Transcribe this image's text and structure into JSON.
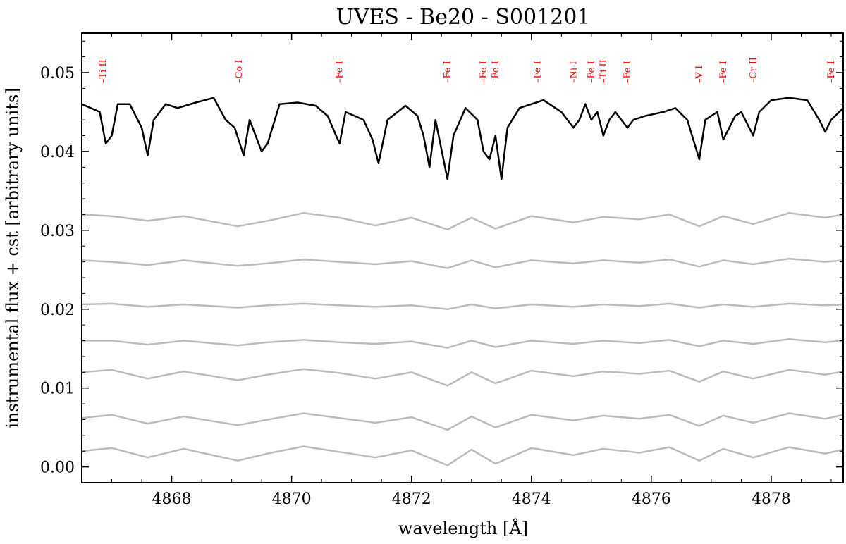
{
  "chart_data": {
    "type": "line",
    "title": "UVES - Be20 - S001201",
    "xlabel": "wavelength [Å]",
    "ylabel": "instrumental flux + cst [arbitrary units]",
    "xlim": [
      4866.5,
      4879.2
    ],
    "ylim": [
      -0.002,
      0.055
    ],
    "xticks": [
      4868,
      4870,
      4872,
      4874,
      4876,
      4878
    ],
    "yticks": [
      0.0,
      0.01,
      0.02,
      0.03,
      0.04,
      0.05
    ],
    "xtick_labels": [
      "4868",
      "4870",
      "4872",
      "4874",
      "4876",
      "4878"
    ],
    "ytick_labels": [
      "0.00",
      "0.01",
      "0.02",
      "0.03",
      "0.04",
      "0.05"
    ],
    "grid": false,
    "colors": {
      "main": "#000000",
      "residual": "#bbbbbb",
      "line_labels": "#ff0000"
    },
    "line_labels": [
      {
        "wavelength": 4866.85,
        "text": "Ti II"
      },
      {
        "wavelength": 4869.12,
        "text": "Co I"
      },
      {
        "wavelength": 4870.8,
        "text": "Fe I"
      },
      {
        "wavelength": 4872.6,
        "text": "Fe I"
      },
      {
        "wavelength": 4873.2,
        "text": "Fe I"
      },
      {
        "wavelength": 4873.4,
        "text": "Fe I"
      },
      {
        "wavelength": 4874.1,
        "text": "Fe I"
      },
      {
        "wavelength": 4874.7,
        "text": "Ni I"
      },
      {
        "wavelength": 4875.0,
        "text": "Fe I"
      },
      {
        "wavelength": 4875.2,
        "text": "Ti II"
      },
      {
        "wavelength": 4875.6,
        "text": "Fe I"
      },
      {
        "wavelength": 4876.8,
        "text": "V I"
      },
      {
        "wavelength": 4877.2,
        "text": "Fe I"
      },
      {
        "wavelength": 4877.7,
        "text": "Cr II"
      },
      {
        "wavelength": 4879.0,
        "text": "Fe I"
      }
    ],
    "series": [
      {
        "role": "main",
        "x": [
          4866.5,
          4866.8,
          4866.9,
          4867.0,
          4867.1,
          4867.3,
          4867.5,
          4867.6,
          4867.7,
          4867.9,
          4868.1,
          4868.4,
          4868.7,
          4868.9,
          4869.05,
          4869.2,
          4869.3,
          4869.5,
          4869.6,
          4869.8,
          4870.1,
          4870.4,
          4870.6,
          4870.8,
          4870.9,
          4871.2,
          4871.35,
          4871.45,
          4871.6,
          4871.9,
          4872.1,
          4872.2,
          4872.3,
          4872.4,
          4872.6,
          4872.7,
          4872.9,
          4873.1,
          4873.2,
          4873.3,
          4873.4,
          4873.5,
          4873.6,
          4873.8,
          4874.0,
          4874.2,
          4874.5,
          4874.7,
          4874.8,
          4874.9,
          4875.0,
          4875.1,
          4875.2,
          4875.3,
          4875.4,
          4875.6,
          4875.7,
          4875.9,
          4876.2,
          4876.4,
          4876.6,
          4876.8,
          4876.9,
          4877.1,
          4877.2,
          4877.4,
          4877.5,
          4877.7,
          4877.8,
          4878.0,
          4878.3,
          4878.6,
          4878.8,
          4878.9,
          4879.0,
          4879.2
        ],
        "y": [
          0.046,
          0.045,
          0.041,
          0.042,
          0.046,
          0.046,
          0.043,
          0.0395,
          0.044,
          0.046,
          0.0455,
          0.0462,
          0.0468,
          0.044,
          0.043,
          0.0395,
          0.044,
          0.04,
          0.041,
          0.046,
          0.0462,
          0.0458,
          0.0445,
          0.041,
          0.045,
          0.044,
          0.0415,
          0.0385,
          0.044,
          0.0458,
          0.0445,
          0.042,
          0.038,
          0.044,
          0.0365,
          0.042,
          0.0455,
          0.044,
          0.04,
          0.039,
          0.042,
          0.0365,
          0.043,
          0.0455,
          0.046,
          0.0465,
          0.045,
          0.043,
          0.044,
          0.046,
          0.044,
          0.045,
          0.042,
          0.044,
          0.045,
          0.043,
          0.044,
          0.0445,
          0.045,
          0.0455,
          0.044,
          0.039,
          0.044,
          0.045,
          0.0415,
          0.0445,
          0.045,
          0.042,
          0.045,
          0.0465,
          0.0468,
          0.0465,
          0.044,
          0.0425,
          0.044,
          0.0455
        ]
      },
      {
        "role": "residual",
        "x": [
          4866.5,
          4867.0,
          4867.6,
          4868.2,
          4869.1,
          4869.6,
          4870.2,
          4870.8,
          4871.4,
          4872.0,
          4872.6,
          4873.0,
          4873.4,
          4874.0,
          4874.7,
          4875.2,
          4875.8,
          4876.3,
          4876.8,
          4877.2,
          4877.7,
          4878.3,
          4878.9,
          4879.2
        ],
        "y": [
          0.032,
          0.0318,
          0.0312,
          0.0318,
          0.0305,
          0.0312,
          0.0322,
          0.0316,
          0.0306,
          0.0316,
          0.0301,
          0.0316,
          0.0302,
          0.0318,
          0.031,
          0.0317,
          0.0314,
          0.032,
          0.0305,
          0.0318,
          0.0308,
          0.0322,
          0.0316,
          0.032
        ]
      },
      {
        "role": "residual",
        "x": [
          4866.5,
          4867.0,
          4867.6,
          4868.2,
          4869.1,
          4869.6,
          4870.2,
          4870.8,
          4871.4,
          4872.0,
          4872.6,
          4873.0,
          4873.4,
          4874.0,
          4874.7,
          4875.2,
          4875.8,
          4876.3,
          4876.8,
          4877.2,
          4877.7,
          4878.3,
          4878.9,
          4879.2
        ],
        "y": [
          0.0262,
          0.026,
          0.0256,
          0.0262,
          0.0255,
          0.0258,
          0.0263,
          0.026,
          0.0257,
          0.0261,
          0.0252,
          0.0262,
          0.0253,
          0.0262,
          0.0258,
          0.0262,
          0.0259,
          0.0263,
          0.0254,
          0.0262,
          0.0257,
          0.0264,
          0.026,
          0.0262
        ]
      },
      {
        "role": "residual",
        "x": [
          4866.5,
          4867.0,
          4867.6,
          4868.2,
          4869.1,
          4869.6,
          4870.2,
          4870.8,
          4871.4,
          4872.0,
          4872.6,
          4873.0,
          4873.4,
          4874.0,
          4874.7,
          4875.2,
          4875.8,
          4876.3,
          4876.8,
          4877.2,
          4877.7,
          4878.3,
          4878.9,
          4879.2
        ],
        "y": [
          0.0206,
          0.0207,
          0.0203,
          0.0206,
          0.0202,
          0.0205,
          0.0207,
          0.0205,
          0.0203,
          0.0205,
          0.02,
          0.0206,
          0.0201,
          0.0206,
          0.0203,
          0.0206,
          0.0204,
          0.0207,
          0.0202,
          0.0206,
          0.0203,
          0.0207,
          0.0205,
          0.0206
        ]
      },
      {
        "role": "residual",
        "x": [
          4866.5,
          4867.0,
          4867.6,
          4868.2,
          4869.1,
          4869.6,
          4870.2,
          4870.8,
          4871.4,
          4872.0,
          4872.6,
          4873.0,
          4873.4,
          4874.0,
          4874.7,
          4875.2,
          4875.8,
          4876.3,
          4876.8,
          4877.2,
          4877.7,
          4878.3,
          4878.9,
          4879.2
        ],
        "y": [
          0.016,
          0.016,
          0.0155,
          0.016,
          0.0154,
          0.0158,
          0.0161,
          0.0158,
          0.0156,
          0.0159,
          0.0151,
          0.016,
          0.0152,
          0.016,
          0.0156,
          0.016,
          0.0157,
          0.0161,
          0.0153,
          0.016,
          0.0156,
          0.0162,
          0.0158,
          0.016
        ]
      },
      {
        "role": "residual",
        "x": [
          4866.5,
          4867.0,
          4867.6,
          4868.2,
          4869.1,
          4869.6,
          4870.2,
          4870.8,
          4871.4,
          4872.0,
          4872.6,
          4873.0,
          4873.4,
          4874.0,
          4874.7,
          4875.2,
          4875.8,
          4876.3,
          4876.8,
          4877.2,
          4877.7,
          4878.3,
          4878.9,
          4879.2
        ],
        "y": [
          0.012,
          0.0123,
          0.0112,
          0.0121,
          0.011,
          0.0117,
          0.0124,
          0.0119,
          0.0112,
          0.012,
          0.0103,
          0.012,
          0.0106,
          0.0122,
          0.0115,
          0.0121,
          0.0118,
          0.0122,
          0.0108,
          0.0121,
          0.0112,
          0.0123,
          0.0117,
          0.0121
        ]
      },
      {
        "role": "residual",
        "x": [
          4866.5,
          4867.0,
          4867.6,
          4868.2,
          4869.1,
          4869.6,
          4870.2,
          4870.8,
          4871.4,
          4872.0,
          4872.6,
          4873.0,
          4873.4,
          4874.0,
          4874.7,
          4875.2,
          4875.8,
          4876.3,
          4876.8,
          4877.2,
          4877.7,
          4878.3,
          4878.9,
          4879.2
        ],
        "y": [
          0.0062,
          0.0066,
          0.0055,
          0.0064,
          0.0053,
          0.006,
          0.0068,
          0.0062,
          0.0056,
          0.0063,
          0.0047,
          0.0064,
          0.005,
          0.0066,
          0.0059,
          0.0065,
          0.0061,
          0.0066,
          0.0052,
          0.0065,
          0.0056,
          0.0068,
          0.0061,
          0.0066
        ]
      },
      {
        "role": "residual",
        "x": [
          4866.5,
          4867.0,
          4867.6,
          4868.2,
          4869.1,
          4869.6,
          4870.2,
          4870.8,
          4871.4,
          4872.0,
          4872.6,
          4873.0,
          4873.4,
          4874.0,
          4874.7,
          4875.2,
          4875.8,
          4876.3,
          4876.8,
          4877.2,
          4877.7,
          4878.3,
          4878.9,
          4879.2
        ],
        "y": [
          0.002,
          0.0024,
          0.0012,
          0.0023,
          0.0008,
          0.0017,
          0.0026,
          0.0019,
          0.0012,
          0.0021,
          0.0002,
          0.0022,
          0.0004,
          0.0024,
          0.0015,
          0.0023,
          0.0018,
          0.0025,
          0.0008,
          0.0023,
          0.0012,
          0.0025,
          0.0017,
          0.0022
        ]
      }
    ]
  }
}
